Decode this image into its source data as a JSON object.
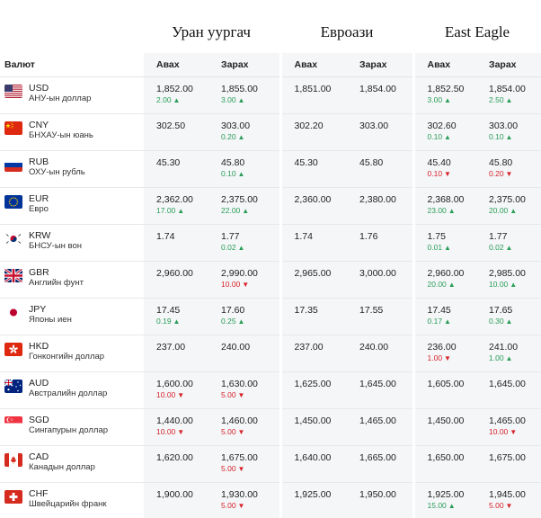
{
  "banks": [
    "Уран уургач",
    "Евроази",
    "East Eagle"
  ],
  "headers": {
    "currency": "Валют",
    "buy": "Авах",
    "sell": "Зарах"
  },
  "rows": [
    {
      "flag": "us",
      "code": "USD",
      "name": "АНУ-ын доллар",
      "u_buy": "1,852.00",
      "u_buy_chg": "2.00",
      "u_buy_dir": "up",
      "u_sell": "1,855.00",
      "u_sell_chg": "3.00",
      "u_sell_dir": "up",
      "e_buy": "1,851.00",
      "e_sell": "1,854.00",
      "ee_buy": "1,852.50",
      "ee_buy_chg": "3.00",
      "ee_buy_dir": "up",
      "ee_sell": "1,854.00",
      "ee_sell_chg": "2.50",
      "ee_sell_dir": "up"
    },
    {
      "flag": "cn",
      "code": "CNY",
      "name": "БНХАУ-ын юань",
      "u_buy": "302.50",
      "u_buy_chg": "",
      "u_buy_dir": "",
      "u_sell": "303.00",
      "u_sell_chg": "0.20",
      "u_sell_dir": "up",
      "e_buy": "302.20",
      "e_sell": "303.00",
      "ee_buy": "302.60",
      "ee_buy_chg": "0.10",
      "ee_buy_dir": "up",
      "ee_sell": "303.00",
      "ee_sell_chg": "0.10",
      "ee_sell_dir": "up"
    },
    {
      "flag": "ru",
      "code": "RUB",
      "name": "ОХУ-ын рубль",
      "u_buy": "45.30",
      "u_buy_chg": "",
      "u_buy_dir": "",
      "u_sell": "45.80",
      "u_sell_chg": "0.10",
      "u_sell_dir": "up",
      "e_buy": "45.30",
      "e_sell": "45.80",
      "ee_buy": "45.40",
      "ee_buy_chg": "0.10",
      "ee_buy_dir": "down",
      "ee_sell": "45.80",
      "ee_sell_chg": "0.20",
      "ee_sell_dir": "down"
    },
    {
      "flag": "eu",
      "code": "EUR",
      "name": "Евро",
      "u_buy": "2,362.00",
      "u_buy_chg": "17.00",
      "u_buy_dir": "up",
      "u_sell": "2,375.00",
      "u_sell_chg": "22.00",
      "u_sell_dir": "up",
      "e_buy": "2,360.00",
      "e_sell": "2,380.00",
      "ee_buy": "2,368.00",
      "ee_buy_chg": "23.00",
      "ee_buy_dir": "up",
      "ee_sell": "2,375.00",
      "ee_sell_chg": "20.00",
      "ee_sell_dir": "up"
    },
    {
      "flag": "kr",
      "code": "KRW",
      "name": "БНСУ-ын вон",
      "u_buy": "1.74",
      "u_buy_chg": "",
      "u_buy_dir": "",
      "u_sell": "1.77",
      "u_sell_chg": "0.02",
      "u_sell_dir": "up",
      "e_buy": "1.74",
      "e_sell": "1.76",
      "ee_buy": "1.75",
      "ee_buy_chg": "0.01",
      "ee_buy_dir": "up",
      "ee_sell": "1.77",
      "ee_sell_chg": "0.02",
      "ee_sell_dir": "up"
    },
    {
      "flag": "gb",
      "code": "GBR",
      "name": "Английн фунт",
      "u_buy": "2,960.00",
      "u_buy_chg": "",
      "u_buy_dir": "",
      "u_sell": "2,990.00",
      "u_sell_chg": "10.00",
      "u_sell_dir": "down",
      "e_buy": "2,965.00",
      "e_sell": "3,000.00",
      "ee_buy": "2,960.00",
      "ee_buy_chg": "20.00",
      "ee_buy_dir": "up",
      "ee_sell": "2,985.00",
      "ee_sell_chg": "10.00",
      "ee_sell_dir": "up"
    },
    {
      "flag": "jp",
      "code": "JPY",
      "name": "Японы иен",
      "u_buy": "17.45",
      "u_buy_chg": "0.19",
      "u_buy_dir": "up",
      "u_sell": "17.60",
      "u_sell_chg": "0.25",
      "u_sell_dir": "up",
      "e_buy": "17.35",
      "e_sell": "17.55",
      "ee_buy": "17.45",
      "ee_buy_chg": "0.17",
      "ee_buy_dir": "up",
      "ee_sell": "17.65",
      "ee_sell_chg": "0.30",
      "ee_sell_dir": "up"
    },
    {
      "flag": "hk",
      "code": "HKD",
      "name": "Гонконгийн доллар",
      "u_buy": "237.00",
      "u_buy_chg": "",
      "u_buy_dir": "",
      "u_sell": "240.00",
      "u_sell_chg": "",
      "u_sell_dir": "",
      "e_buy": "237.00",
      "e_sell": "240.00",
      "ee_buy": "236.00",
      "ee_buy_chg": "1.00",
      "ee_buy_dir": "down",
      "ee_sell": "241.00",
      "ee_sell_chg": "1.00",
      "ee_sell_dir": "up"
    },
    {
      "flag": "au",
      "code": "AUD",
      "name": "Австралийн доллар",
      "u_buy": "1,600.00",
      "u_buy_chg": "10.00",
      "u_buy_dir": "down",
      "u_sell": "1,630.00",
      "u_sell_chg": "5.00",
      "u_sell_dir": "down",
      "e_buy": "1,625.00",
      "e_sell": "1,645.00",
      "ee_buy": "1,605.00",
      "ee_buy_chg": "",
      "ee_buy_dir": "",
      "ee_sell": "1,645.00",
      "ee_sell_chg": "",
      "ee_sell_dir": ""
    },
    {
      "flag": "sg",
      "code": "SGD",
      "name": "Сингапурын доллар",
      "u_buy": "1,440.00",
      "u_buy_chg": "10.00",
      "u_buy_dir": "down",
      "u_sell": "1,460.00",
      "u_sell_chg": "5.00",
      "u_sell_dir": "down",
      "e_buy": "1,450.00",
      "e_sell": "1,465.00",
      "ee_buy": "1,450.00",
      "ee_buy_chg": "",
      "ee_buy_dir": "",
      "ee_sell": "1,465.00",
      "ee_sell_chg": "10.00",
      "ee_sell_dir": "down"
    },
    {
      "flag": "ca",
      "code": "CAD",
      "name": "Канадын доллар",
      "u_buy": "1,620.00",
      "u_buy_chg": "",
      "u_buy_dir": "",
      "u_sell": "1,675.00",
      "u_sell_chg": "5.00",
      "u_sell_dir": "down",
      "e_buy": "1,640.00",
      "e_sell": "1,665.00",
      "ee_buy": "1,650.00",
      "ee_buy_chg": "",
      "ee_buy_dir": "",
      "ee_sell": "1,675.00",
      "ee_sell_chg": "",
      "ee_sell_dir": ""
    },
    {
      "flag": "ch",
      "code": "CHF",
      "name": "Швейцарийн франк",
      "u_buy": "1,900.00",
      "u_buy_chg": "",
      "u_buy_dir": "",
      "u_sell": "1,930.00",
      "u_sell_chg": "5.00",
      "u_sell_dir": "down",
      "e_buy": "1,925.00",
      "e_sell": "1,950.00",
      "ee_buy": "1,925.00",
      "ee_buy_chg": "15.00",
      "ee_buy_dir": "up",
      "ee_sell": "1,945.00",
      "ee_sell_chg": "5.00",
      "ee_sell_dir": "down"
    }
  ],
  "colors": {
    "up": "#2a9d57",
    "down": "#d8232a",
    "bank_bg": "#f4f6f8"
  }
}
